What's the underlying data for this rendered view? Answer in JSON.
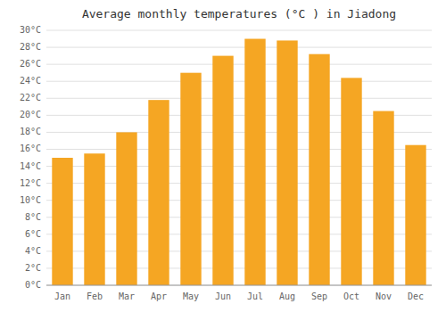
{
  "chart_data": {
    "type": "bar",
    "title": "Average monthly temperatures (°C ) in Jiadong",
    "categories": [
      "Jan",
      "Feb",
      "Mar",
      "Apr",
      "May",
      "Jun",
      "Jul",
      "Aug",
      "Sep",
      "Oct",
      "Nov",
      "Dec"
    ],
    "values": [
      15.0,
      15.5,
      18.0,
      21.8,
      25.0,
      27.0,
      29.0,
      28.8,
      27.2,
      24.4,
      20.5,
      16.5
    ],
    "color": "#F5A623",
    "ylim": [
      0,
      30
    ],
    "yticks": [
      {
        "value": 0,
        "label": "0°C"
      },
      {
        "value": 2,
        "label": "2°C"
      },
      {
        "value": 4,
        "label": "4°C"
      },
      {
        "value": 6,
        "label": "6°C"
      },
      {
        "value": 8,
        "label": "8°C"
      },
      {
        "value": 10,
        "label": "10°C"
      },
      {
        "value": 12,
        "label": "12°C"
      },
      {
        "value": 14,
        "label": "14°C"
      },
      {
        "value": 16,
        "label": "16°C"
      },
      {
        "value": 18,
        "label": "18°C"
      },
      {
        "value": 20,
        "label": "20°C"
      },
      {
        "value": 22,
        "label": "22°C"
      },
      {
        "value": 24,
        "label": "24°C"
      },
      {
        "value": 26,
        "label": "26°C"
      },
      {
        "value": 28,
        "label": "28°C"
      },
      {
        "value": 30,
        "label": "30°C"
      }
    ],
    "grid": true
  }
}
